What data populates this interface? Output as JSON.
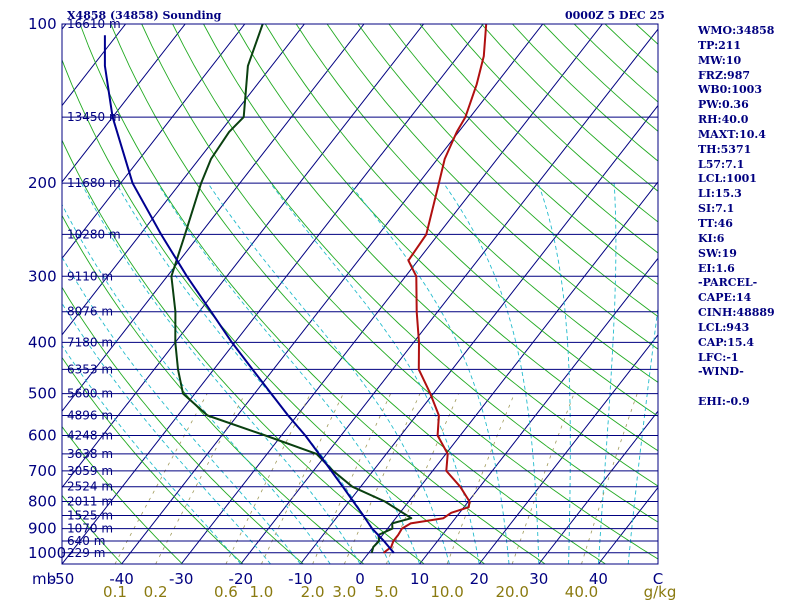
{
  "header": {
    "station": "X4858 (34858) Sounding",
    "time": "0000Z  5 DEC 25"
  },
  "indices": [
    "WMO:34858",
    "TP:211",
    "MW:10",
    "FRZ:987",
    "WB0:1003",
    "PW:0.36",
    "RH:40.0",
    "MAXT:10.4",
    "TH:5371",
    "L57:7.1",
    "LCL:1001",
    "LI:15.3",
    "SI:7.1",
    "TT:46",
    "KI:6",
    "SW:19",
    "EI:1.6",
    "-PARCEL-",
    "CAPE:14",
    "CINH:48889",
    "LCL:943",
    "CAP:15.4",
    "LFC:-1",
    "-WIND-",
    "",
    "EHI:-0.9"
  ],
  "chart_data": {
    "type": "skew-t",
    "title": "X4858 (34858) Sounding",
    "time": "0000Z  5 DEC 25",
    "pressure_axis": {
      "unit": "mb",
      "range": [
        1000,
        100
      ],
      "ticks": [
        100,
        200,
        300,
        400,
        500,
        600,
        700,
        800,
        900,
        1000
      ]
    },
    "temperature_axis": {
      "unit": "C",
      "range": [
        -50,
        50
      ],
      "ticks": [
        -50,
        -40,
        -30,
        -20,
        -10,
        0,
        10,
        20,
        30,
        40
      ],
      "tick_labels": [
        "-50",
        "-40",
        "-30",
        "-20",
        "-10",
        "0",
        "10",
        "20",
        "30",
        "40"
      ],
      "end_label": "C"
    },
    "mixing_ratio_axis": {
      "unit": "g/kg",
      "values": [
        0.1,
        0.2,
        0.6,
        1.0,
        2.0,
        3.0,
        5.0,
        10.0,
        20.0,
        40.0
      ],
      "labels": [
        "0.1",
        "0.2",
        "0.6",
        "1.0",
        "2.0",
        "3.0",
        "5.0",
        "10.0",
        "20.0",
        "40.0"
      ],
      "unit_label": "g/kg"
    },
    "height_levels": [
      {
        "p": 100,
        "label": "16610 m"
      },
      {
        "p": 150,
        "label": "13450 m"
      },
      {
        "p": 200,
        "label": "11680 m"
      },
      {
        "p": 250,
        "label": "10280 m"
      },
      {
        "p": 300,
        "label": "9110 m"
      },
      {
        "p": 350,
        "label": "8076 m"
      },
      {
        "p": 400,
        "label": "7180 m"
      },
      {
        "p": 450,
        "label": "6353 m"
      },
      {
        "p": 500,
        "label": "5600 m"
      },
      {
        "p": 550,
        "label": "4896 m"
      },
      {
        "p": 600,
        "label": "4248 m"
      },
      {
        "p": 650,
        "label": "3638 m"
      },
      {
        "p": 700,
        "label": "3059 m"
      },
      {
        "p": 750,
        "label": "2524 m"
      },
      {
        "p": 800,
        "label": "2011 m"
      },
      {
        "p": 850,
        "label": "1525 m"
      },
      {
        "p": 900,
        "label": "1070 m"
      },
      {
        "p": 950,
        "label": "640 m"
      },
      {
        "p": 1000,
        "label": "229 m"
      }
    ],
    "series": [
      {
        "name": "Temperature",
        "color": "#b01010",
        "points": [
          {
            "p": 1000,
            "t": 2.5
          },
          {
            "p": 975,
            "t": 3.0
          },
          {
            "p": 950,
            "t": 2.6
          },
          {
            "p": 925,
            "t": 2.6
          },
          {
            "p": 900,
            "t": 2.4
          },
          {
            "p": 880,
            "t": 3.2
          },
          {
            "p": 860,
            "t": 8.0
          },
          {
            "p": 840,
            "t": 8.6
          },
          {
            "p": 820,
            "t": 10.8
          },
          {
            "p": 800,
            "t": 10.2
          },
          {
            "p": 750,
            "t": 6.7
          },
          {
            "p": 700,
            "t": 2.3
          },
          {
            "p": 650,
            "t": 0.3
          },
          {
            "p": 600,
            "t": -3.8
          },
          {
            "p": 550,
            "t": -6.2
          },
          {
            "p": 500,
            "t": -10.5
          },
          {
            "p": 450,
            "t": -15.6
          },
          {
            "p": 400,
            "t": -19.1
          },
          {
            "p": 350,
            "t": -23.5
          },
          {
            "p": 300,
            "t": -28.2
          },
          {
            "p": 280,
            "t": -31.6
          },
          {
            "p": 250,
            "t": -32.0
          },
          {
            "p": 200,
            "t": -36.6
          },
          {
            "p": 180,
            "t": -38.8
          },
          {
            "p": 160,
            "t": -40.3
          },
          {
            "p": 150,
            "t": -40.8
          },
          {
            "p": 130,
            "t": -43.2
          },
          {
            "p": 115,
            "t": -45.7
          },
          {
            "p": 100,
            "t": -49.5
          }
        ]
      },
      {
        "name": "Dewpoint",
        "color": "#0a4010",
        "points": [
          {
            "p": 1000,
            "t": 0.5
          },
          {
            "p": 975,
            "t": 0.0
          },
          {
            "p": 950,
            "t": 0.2
          },
          {
            "p": 925,
            "t": -0.7
          },
          {
            "p": 900,
            "t": 0.8
          },
          {
            "p": 880,
            "t": 0.1
          },
          {
            "p": 860,
            "t": 2.6
          },
          {
            "p": 800,
            "t": -4.0
          },
          {
            "p": 750,
            "t": -11.4
          },
          {
            "p": 700,
            "t": -16.7
          },
          {
            "p": 650,
            "t": -21.7
          },
          {
            "p": 600,
            "t": -32.7
          },
          {
            "p": 550,
            "t": -45.0
          },
          {
            "p": 500,
            "t": -52.0
          },
          {
            "p": 450,
            "t": -56.0
          },
          {
            "p": 400,
            "t": -60.0
          },
          {
            "p": 350,
            "t": -64.0
          },
          {
            "p": 300,
            "t": -69.3
          },
          {
            "p": 250,
            "t": -72.5
          },
          {
            "p": 200,
            "t": -76.5
          },
          {
            "p": 180,
            "t": -78.0
          },
          {
            "p": 160,
            "t": -78.5
          },
          {
            "p": 150,
            "t": -78.0
          },
          {
            "p": 120,
            "t": -84.0
          },
          {
            "p": 100,
            "t": -87.0
          }
        ]
      },
      {
        "name": "Parcel",
        "color": "#000090",
        "points": [
          {
            "p": 1000,
            "t": 4.2
          },
          {
            "p": 950,
            "t": 1.0
          },
          {
            "p": 900,
            "t": -2.6
          },
          {
            "p": 850,
            "t": -5.8
          },
          {
            "p": 800,
            "t": -9.3
          },
          {
            "p": 750,
            "t": -13.0
          },
          {
            "p": 700,
            "t": -17.0
          },
          {
            "p": 650,
            "t": -21.3
          },
          {
            "p": 600,
            "t": -26.0
          },
          {
            "p": 550,
            "t": -31.5
          },
          {
            "p": 500,
            "t": -37.2
          },
          {
            "p": 450,
            "t": -43.5
          },
          {
            "p": 400,
            "t": -50.5
          },
          {
            "p": 350,
            "t": -58.0
          },
          {
            "p": 300,
            "t": -66.7
          },
          {
            "p": 250,
            "t": -76.5
          },
          {
            "p": 200,
            "t": -88.0
          },
          {
            "p": 150,
            "t": -100.0
          },
          {
            "p": 120,
            "t": -108.0
          },
          {
            "p": 105,
            "t": -112.0
          }
        ]
      }
    ]
  }
}
